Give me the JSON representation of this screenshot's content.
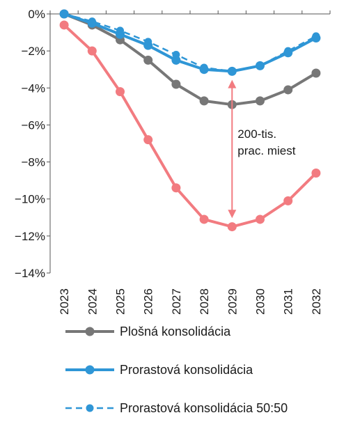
{
  "chart_data": {
    "type": "line",
    "categories": [
      "2023",
      "2024",
      "2025",
      "2026",
      "2027",
      "2028",
      "2029",
      "2030",
      "2031",
      "2032"
    ],
    "ylim": [
      -14,
      0
    ],
    "yticks": [
      0,
      -2,
      -4,
      -6,
      -8,
      -10,
      -12,
      -14
    ],
    "ytick_labels": [
      "0%",
      "−2%",
      "−4%",
      "−6%",
      "−8%",
      "−10%",
      "−12%",
      "−14%"
    ],
    "grid": false,
    "legend_position": "bottom",
    "series": [
      {
        "name": "Plošná konsolidácia",
        "color": "#777777",
        "style": "solid",
        "values": [
          0.0,
          -0.6,
          -1.4,
          -2.5,
          -3.8,
          -4.7,
          -4.9,
          -4.7,
          -4.1,
          -3.2
        ]
      },
      {
        "name": "Prorastová konsolidácia",
        "color": "#2f96d6",
        "style": "solid",
        "values": [
          0.0,
          -0.5,
          -1.1,
          -1.7,
          -2.5,
          -3.0,
          -3.1,
          -2.8,
          -2.1,
          -1.3
        ]
      },
      {
        "name": "Prorastová konsolidácia 50:50",
        "color": "#2f96d6",
        "style": "dashed",
        "values": [
          0.0,
          -0.4,
          -0.9,
          -1.5,
          -2.2,
          -2.9,
          -3.1,
          -2.8,
          -2.0,
          -1.2
        ]
      },
      {
        "name": "",
        "color": "#f27b80",
        "style": "solid",
        "values": [
          -0.6,
          -2.0,
          -4.2,
          -6.8,
          -9.4,
          -11.1,
          -11.5,
          -11.1,
          -10.1,
          -8.6
        ]
      }
    ],
    "annotation": {
      "text_lines": [
        "200-tis.",
        "prac. miest"
      ],
      "category": "2029",
      "from_value": -3.6,
      "to_value": -11.0
    }
  }
}
